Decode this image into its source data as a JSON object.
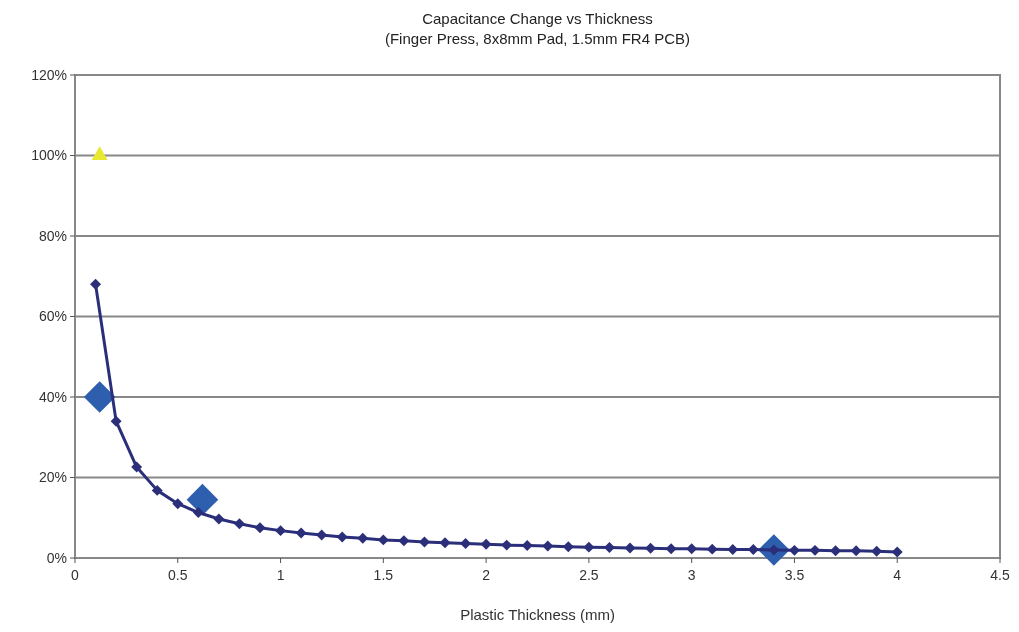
{
  "chart_data": {
    "type": "line",
    "title": "Capacitance  Change  vs  Thickness",
    "subtitle": "(Finger  Press,  8x8mm  Pad,  1.5mm  FR4 PCB)",
    "xlabel": "Plastic  Thickness  (mm)",
    "xlim": [
      0,
      4.5
    ],
    "xticks": [
      0,
      0.5,
      1,
      1.5,
      2,
      2.5,
      3,
      3.5,
      4,
      4.5
    ],
    "ylim": [
      0,
      120
    ],
    "yticks": [
      {
        "value": 0,
        "label": "0%"
      },
      {
        "value": 20,
        "label": "20%"
      },
      {
        "value": 40,
        "label": "40%"
      },
      {
        "value": 60,
        "label": "60%"
      },
      {
        "value": 80,
        "label": "80%"
      },
      {
        "value": 100,
        "label": "100%"
      },
      {
        "value": 120,
        "label": "120%"
      }
    ],
    "grid": "y",
    "series": [
      {
        "type": "scatter",
        "marker": "diamond",
        "color": "#2e5fae",
        "x": [
          0.12,
          0.62,
          3.4
        ],
        "values": [
          40,
          14.5,
          2
        ]
      },
      {
        "type": "line",
        "marker": "diamond",
        "color": "#2b2f7a",
        "x": [
          0.1,
          0.2,
          0.3,
          0.4,
          0.5,
          0.6,
          0.7,
          0.8,
          0.9,
          1.0,
          1.1,
          1.2,
          1.3,
          1.4,
          1.5,
          1.6,
          1.7,
          1.8,
          1.9,
          2.0,
          2.1,
          2.2,
          2.3,
          2.4,
          2.5,
          2.6,
          2.7,
          2.8,
          2.9,
          3.0,
          3.1,
          3.2,
          3.3,
          3.4,
          3.5,
          3.6,
          3.7,
          3.8,
          3.9,
          4.0
        ],
        "values": [
          68,
          34,
          22.6,
          16.8,
          13.5,
          11.3,
          9.7,
          8.5,
          7.5,
          6.8,
          6.2,
          5.7,
          5.2,
          4.9,
          4.5,
          4.3,
          4.0,
          3.8,
          3.6,
          3.4,
          3.2,
          3.1,
          3.0,
          2.8,
          2.7,
          2.6,
          2.5,
          2.4,
          2.3,
          2.3,
          2.2,
          2.1,
          2.1,
          2.0,
          1.9,
          1.9,
          1.8,
          1.8,
          1.7,
          1.5
        ]
      },
      {
        "type": "scatter",
        "marker": "triangle",
        "color": "#e8e830",
        "x": [
          0.12
        ],
        "values": [
          100
        ]
      }
    ]
  }
}
